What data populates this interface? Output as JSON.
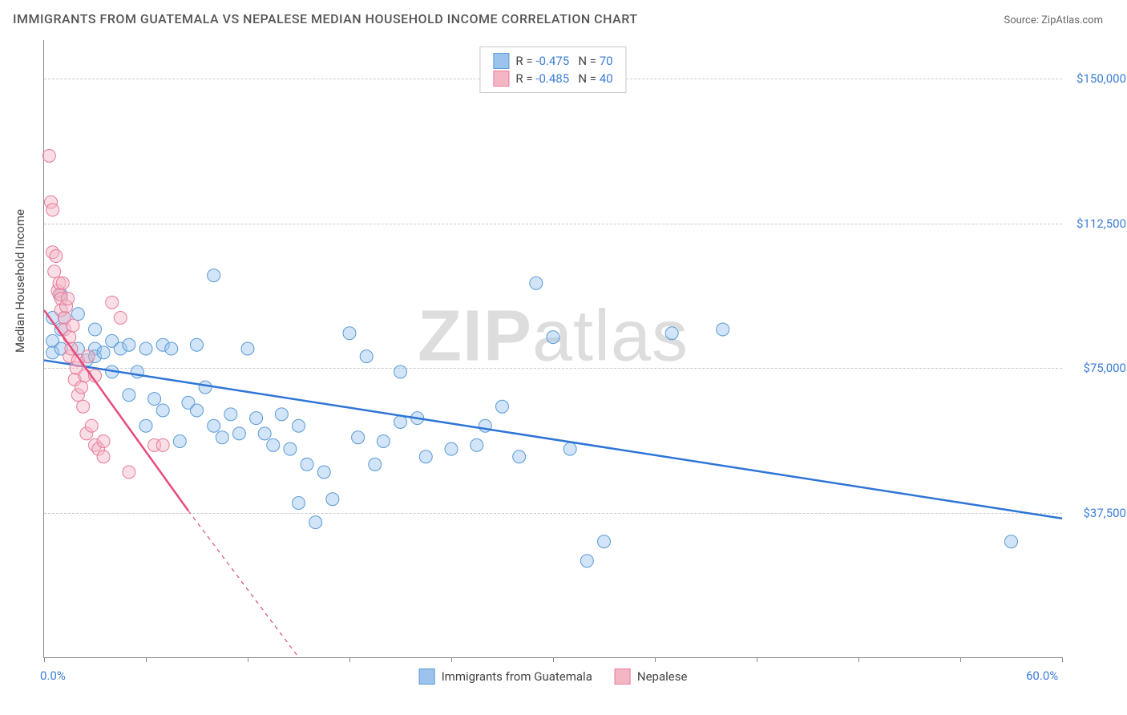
{
  "title": "IMMIGRANTS FROM GUATEMALA VS NEPALESE MEDIAN HOUSEHOLD INCOME CORRELATION CHART",
  "source": "Source: ZipAtlas.com",
  "watermark_bold": "ZIP",
  "watermark_rest": "atlas",
  "y_axis_label": "Median Household Income",
  "chart": {
    "type": "scatter",
    "xlim": [
      0,
      60
    ],
    "ylim": [
      0,
      160000
    ],
    "x_ticks": [
      0,
      6,
      12,
      18,
      24,
      30,
      36,
      42,
      48,
      54,
      60
    ],
    "x_tick_labels": {
      "0": "0.0%",
      "60": "60.0%"
    },
    "y_ticks": [
      37500,
      75000,
      112500,
      150000
    ],
    "y_tick_labels": [
      "$37,500",
      "$75,000",
      "$112,500",
      "$150,000"
    ],
    "grid_color": "#cccccc",
    "axis_color": "#888888",
    "background_color": "#ffffff",
    "marker_radius": 8,
    "marker_opacity": 0.45,
    "series": [
      {
        "name": "Immigrants from Guatemala",
        "fill_color": "#9cc3ee",
        "stroke_color": "#5a9bd5",
        "line_color": "#2e75d6",
        "line_width": 2.5,
        "R": "-0.475",
        "N": "70",
        "regression": {
          "x1": 0,
          "y1": 77000,
          "x2": 60,
          "y2": 36000
        },
        "points": [
          [
            0.5,
            88000
          ],
          [
            0.5,
            82000
          ],
          [
            0.5,
            79000
          ],
          [
            1,
            94000
          ],
          [
            1,
            85000
          ],
          [
            1,
            80000
          ],
          [
            1.2,
            88000
          ],
          [
            2,
            89000
          ],
          [
            2,
            80000
          ],
          [
            2.5,
            77000
          ],
          [
            3,
            80000
          ],
          [
            3,
            85000
          ],
          [
            3,
            78000
          ],
          [
            3.5,
            79000
          ],
          [
            4,
            82000
          ],
          [
            4,
            74000
          ],
          [
            4.5,
            80000
          ],
          [
            5,
            81000
          ],
          [
            5,
            68000
          ],
          [
            5.5,
            74000
          ],
          [
            6,
            80000
          ],
          [
            6,
            60000
          ],
          [
            6.5,
            67000
          ],
          [
            7,
            81000
          ],
          [
            7,
            64000
          ],
          [
            7.5,
            80000
          ],
          [
            8,
            56000
          ],
          [
            8.5,
            66000
          ],
          [
            9,
            81000
          ],
          [
            9,
            64000
          ],
          [
            9.5,
            70000
          ],
          [
            10,
            99000
          ],
          [
            10,
            60000
          ],
          [
            10.5,
            57000
          ],
          [
            11,
            63000
          ],
          [
            11.5,
            58000
          ],
          [
            12,
            80000
          ],
          [
            12.5,
            62000
          ],
          [
            13,
            58000
          ],
          [
            13.5,
            55000
          ],
          [
            14,
            63000
          ],
          [
            14.5,
            54000
          ],
          [
            15,
            40000
          ],
          [
            15,
            60000
          ],
          [
            15.5,
            50000
          ],
          [
            16,
            35000
          ],
          [
            16.5,
            48000
          ],
          [
            17,
            41000
          ],
          [
            18,
            84000
          ],
          [
            18.5,
            57000
          ],
          [
            19,
            78000
          ],
          [
            19.5,
            50000
          ],
          [
            20,
            56000
          ],
          [
            21,
            61000
          ],
          [
            21,
            74000
          ],
          [
            22,
            62000
          ],
          [
            22.5,
            52000
          ],
          [
            24,
            54000
          ],
          [
            25.5,
            55000
          ],
          [
            26,
            60000
          ],
          [
            27,
            65000
          ],
          [
            28,
            52000
          ],
          [
            29,
            97000
          ],
          [
            30,
            83000
          ],
          [
            31,
            54000
          ],
          [
            32,
            25000
          ],
          [
            33,
            30000
          ],
          [
            37,
            84000
          ],
          [
            40,
            85000
          ],
          [
            57,
            30000
          ]
        ]
      },
      {
        "name": "Nepalese",
        "fill_color": "#f4b6c5",
        "stroke_color": "#e87b9a",
        "line_color": "#e64b7a",
        "line_width": 2.5,
        "R": "-0.485",
        "N": "40",
        "regression_solid": {
          "x1": 0,
          "y1": 90000,
          "x2": 8.5,
          "y2": 38000
        },
        "regression_dashed": {
          "x1": 8.5,
          "y1": 38000,
          "x2": 15,
          "y2": 0
        },
        "points": [
          [
            0.3,
            130000
          ],
          [
            0.4,
            118000
          ],
          [
            0.5,
            116000
          ],
          [
            0.5,
            105000
          ],
          [
            0.6,
            100000
          ],
          [
            0.7,
            104000
          ],
          [
            0.8,
            95000
          ],
          [
            0.9,
            94000
          ],
          [
            0.9,
            97000
          ],
          [
            1,
            90000
          ],
          [
            1,
            93000
          ],
          [
            1.1,
            97000
          ],
          [
            1.2,
            88000
          ],
          [
            1.2,
            85000
          ],
          [
            1.3,
            91000
          ],
          [
            1.4,
            93000
          ],
          [
            1.5,
            83000
          ],
          [
            1.5,
            78000
          ],
          [
            1.6,
            80000
          ],
          [
            1.7,
            86000
          ],
          [
            1.8,
            72000
          ],
          [
            1.9,
            75000
          ],
          [
            2,
            68000
          ],
          [
            2,
            77000
          ],
          [
            2.2,
            70000
          ],
          [
            2.3,
            65000
          ],
          [
            2.4,
            73000
          ],
          [
            2.5,
            58000
          ],
          [
            2.6,
            78000
          ],
          [
            2.8,
            60000
          ],
          [
            3,
            55000
          ],
          [
            3,
            73000
          ],
          [
            3.2,
            54000
          ],
          [
            3.5,
            52000
          ],
          [
            3.5,
            56000
          ],
          [
            4,
            92000
          ],
          [
            4.5,
            88000
          ],
          [
            5,
            48000
          ],
          [
            6.5,
            55000
          ],
          [
            7,
            55000
          ]
        ]
      }
    ]
  },
  "legend_top_common": {
    "R_label": "R = ",
    "N_label": "N = "
  },
  "legend_bottom": [
    {
      "label": "Immigrants from Guatemala",
      "fill": "#9cc3ee",
      "stroke": "#5a9bd5"
    },
    {
      "label": "Nepalese",
      "fill": "#f4b6c5",
      "stroke": "#e87b9a"
    }
  ]
}
